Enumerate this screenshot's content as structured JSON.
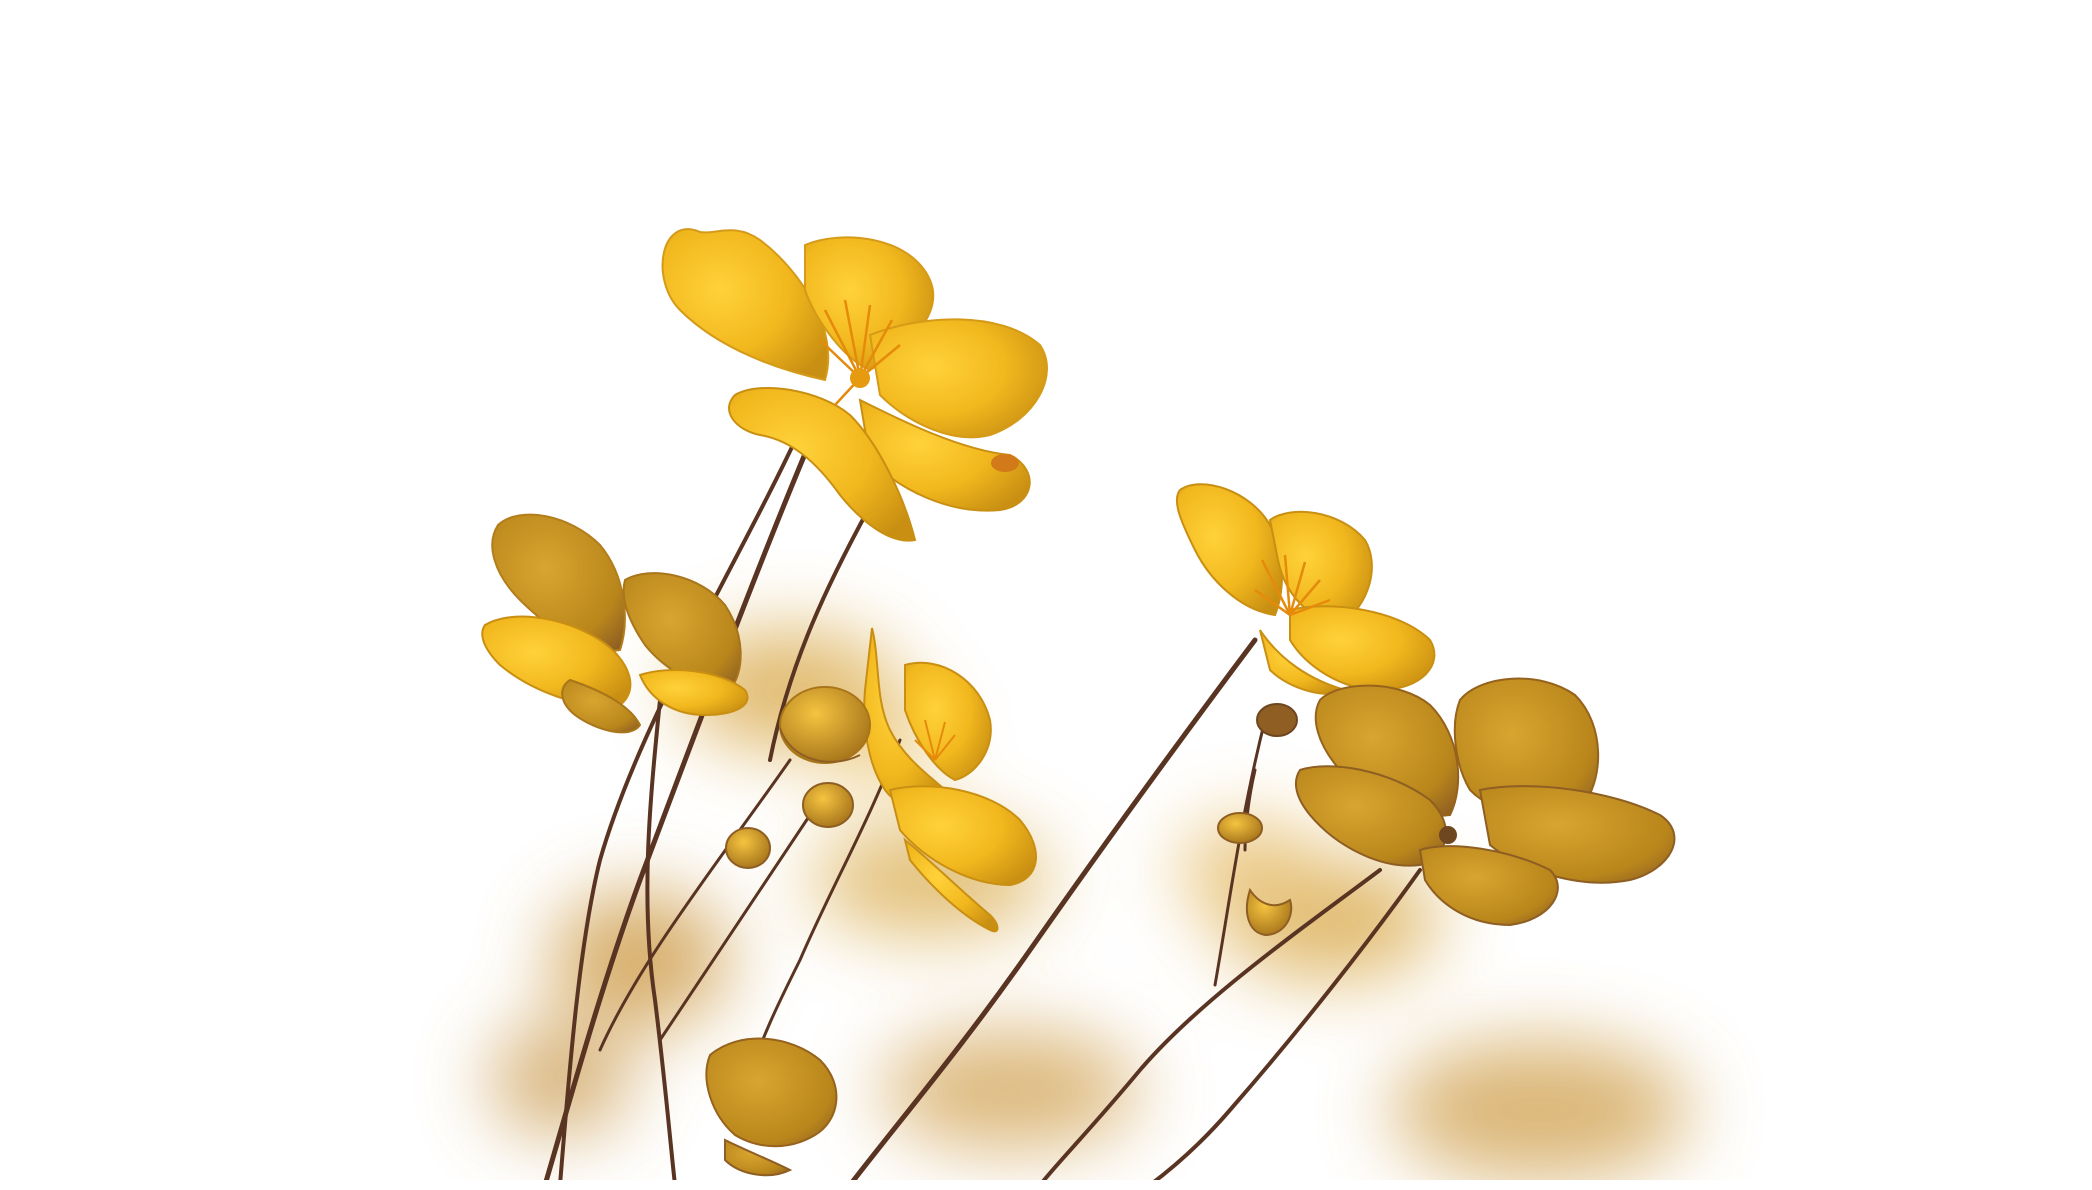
{
  "image": {
    "subject": "yellow-buttercup-flowers",
    "background_color": "#ffffff",
    "petal_color": "#f2b81e",
    "petal_shade_color": "#d99a10",
    "petal_dark_color": "#b9861b",
    "stamen_color": "#e58a0a",
    "stem_color": "#5a3422",
    "blur_color": "#d6a23a"
  }
}
